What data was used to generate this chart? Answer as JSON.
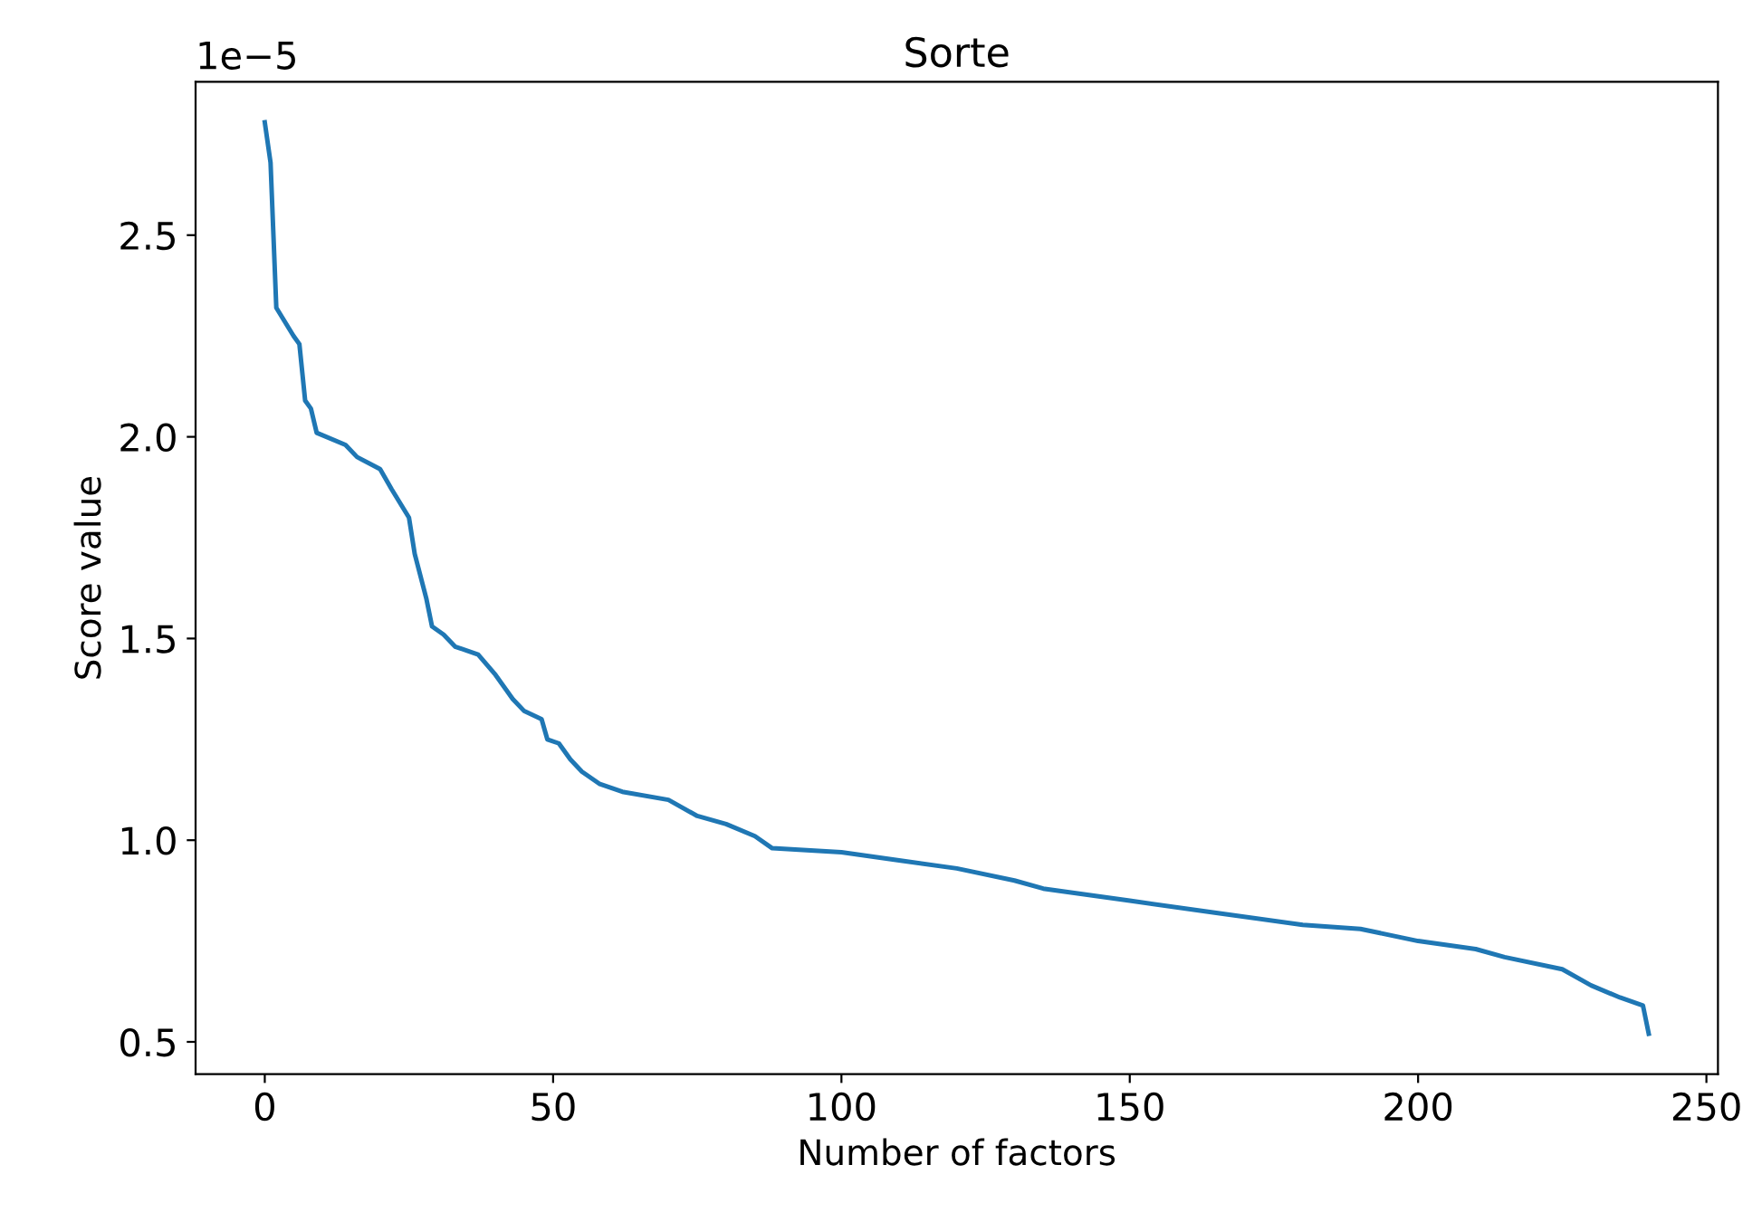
{
  "chart_data": {
    "type": "line",
    "title": "Sorte",
    "xlabel": "Number of factors",
    "ylabel": "Score value",
    "annotations": [
      "1e−5"
    ],
    "x": [
      0,
      1,
      2,
      5,
      6,
      7,
      8,
      9,
      14,
      16,
      20,
      22,
      25,
      26,
      28,
      29,
      31,
      33,
      37,
      40,
      43,
      45,
      48,
      49,
      51,
      53,
      55,
      58,
      62,
      70,
      75,
      80,
      85,
      88,
      100,
      110,
      120,
      130,
      135,
      150,
      165,
      180,
      190,
      200,
      210,
      215,
      225,
      230,
      235,
      239,
      240
    ],
    "series": [
      {
        "color": "#1f77b4",
        "values": [
          2.78,
          2.68,
          2.32,
          2.25,
          2.23,
          2.09,
          2.07,
          2.01,
          1.98,
          1.95,
          1.92,
          1.87,
          1.8,
          1.71,
          1.6,
          1.53,
          1.51,
          1.48,
          1.46,
          1.41,
          1.35,
          1.32,
          1.3,
          1.25,
          1.24,
          1.2,
          1.17,
          1.14,
          1.12,
          1.1,
          1.06,
          1.04,
          1.01,
          0.98,
          0.97,
          0.95,
          0.93,
          0.9,
          0.88,
          0.85,
          0.82,
          0.79,
          0.78,
          0.75,
          0.73,
          0.71,
          0.68,
          0.64,
          0.61,
          0.59,
          0.52
        ]
      }
    ],
    "xlim": [
      -12,
      252
    ],
    "xticks": [
      0,
      50,
      100,
      150,
      200,
      250
    ],
    "ylim": [
      0.42,
      2.88
    ],
    "yticks": [
      {
        "value": 0.5,
        "label": "0.5"
      },
      {
        "value": 1.0,
        "label": "1.0"
      },
      {
        "value": 1.5,
        "label": "1.5"
      },
      {
        "value": 2.0,
        "label": "2.0"
      },
      {
        "value": 2.5,
        "label": "2.5"
      }
    ],
    "grid": false,
    "legend": false,
    "marker": "none",
    "line_style": "solid"
  }
}
